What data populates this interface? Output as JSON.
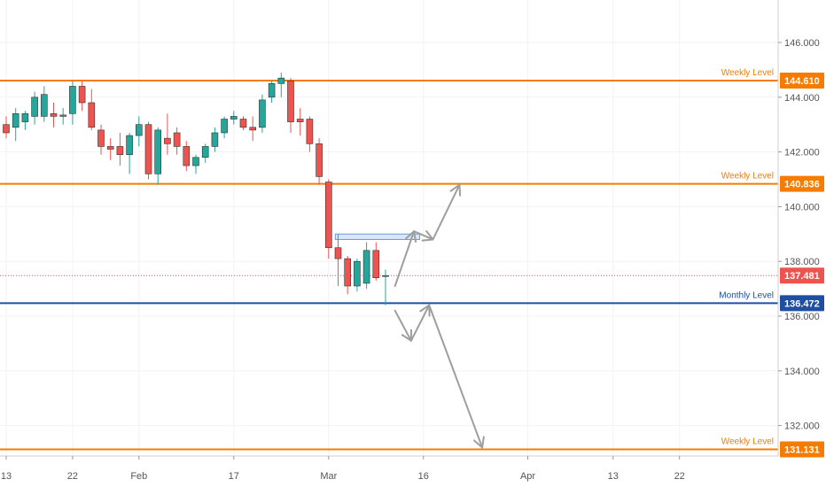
{
  "colors": {
    "up": "#26a69a",
    "down": "#ef5350",
    "weekly": "#f57c00",
    "monthly": "#1e4fa3",
    "current": "#ef5350",
    "arrow": "#9e9e9e",
    "zone_fill": "#cfe0f7",
    "zone_stroke": "#6e9bd8"
  },
  "chart_data": {
    "type": "candlestick",
    "ylim": [
      130.3,
      148.0
    ],
    "y_ticks": [
      {
        "value": 132,
        "label": "132.000"
      },
      {
        "value": 134,
        "label": "134.000"
      },
      {
        "value": 136,
        "label": "136.000"
      },
      {
        "value": 138,
        "label": "138.000"
      },
      {
        "value": 140,
        "label": "140.000"
      },
      {
        "value": 142,
        "label": "142.000"
      },
      {
        "value": 144,
        "label": "144.000"
      },
      {
        "value": 146,
        "label": "146.000"
      }
    ],
    "x_ticks": [
      {
        "index": 0,
        "label": "13"
      },
      {
        "index": 7,
        "label": "22"
      },
      {
        "index": 14,
        "label": "Feb"
      },
      {
        "index": 24,
        "label": "17"
      },
      {
        "index": 34,
        "label": "Mar"
      },
      {
        "index": 44,
        "label": "16"
      },
      {
        "index": 55,
        "label": "Apr"
      },
      {
        "index": 64,
        "label": "13"
      },
      {
        "index": 71,
        "label": "22"
      }
    ],
    "candles": [
      {
        "i": 0,
        "o": 143.0,
        "h": 143.3,
        "l": 142.5,
        "c": 142.7
      },
      {
        "i": 1,
        "o": 142.9,
        "h": 143.6,
        "l": 142.4,
        "c": 143.4
      },
      {
        "i": 2,
        "o": 143.1,
        "h": 143.5,
        "l": 142.8,
        "c": 143.4
      },
      {
        "i": 3,
        "o": 143.3,
        "h": 144.2,
        "l": 143.0,
        "c": 144.0
      },
      {
        "i": 4,
        "o": 143.3,
        "h": 144.4,
        "l": 143.1,
        "c": 144.1
      },
      {
        "i": 5,
        "o": 143.4,
        "h": 143.8,
        "l": 142.9,
        "c": 143.3
      },
      {
        "i": 6,
        "o": 143.3,
        "h": 143.6,
        "l": 143.0,
        "c": 143.35
      },
      {
        "i": 7,
        "o": 143.4,
        "h": 144.6,
        "l": 143.0,
        "c": 144.4
      },
      {
        "i": 8,
        "o": 144.4,
        "h": 144.6,
        "l": 143.5,
        "c": 143.8
      },
      {
        "i": 9,
        "o": 143.8,
        "h": 144.3,
        "l": 142.8,
        "c": 142.9
      },
      {
        "i": 10,
        "o": 142.8,
        "h": 143.0,
        "l": 141.9,
        "c": 142.2
      },
      {
        "i": 11,
        "o": 142.2,
        "h": 142.5,
        "l": 141.7,
        "c": 142.1
      },
      {
        "i": 12,
        "o": 142.2,
        "h": 142.7,
        "l": 141.5,
        "c": 141.9
      },
      {
        "i": 13,
        "o": 141.9,
        "h": 142.7,
        "l": 141.2,
        "c": 142.6
      },
      {
        "i": 14,
        "o": 142.6,
        "h": 143.3,
        "l": 142.2,
        "c": 143.0
      },
      {
        "i": 15,
        "o": 143.0,
        "h": 143.1,
        "l": 141.0,
        "c": 141.2
      },
      {
        "i": 16,
        "o": 141.2,
        "h": 142.9,
        "l": 140.8,
        "c": 142.8
      },
      {
        "i": 17,
        "o": 142.5,
        "h": 143.4,
        "l": 141.9,
        "c": 142.3
      },
      {
        "i": 18,
        "o": 142.7,
        "h": 142.9,
        "l": 141.9,
        "c": 142.2
      },
      {
        "i": 19,
        "o": 142.2,
        "h": 142.4,
        "l": 141.3,
        "c": 141.5
      },
      {
        "i": 20,
        "o": 141.5,
        "h": 141.9,
        "l": 141.2,
        "c": 141.8
      },
      {
        "i": 21,
        "o": 141.8,
        "h": 142.3,
        "l": 141.6,
        "c": 142.2
      },
      {
        "i": 22,
        "o": 142.2,
        "h": 142.9,
        "l": 142.0,
        "c": 142.7
      },
      {
        "i": 23,
        "o": 142.7,
        "h": 143.3,
        "l": 142.5,
        "c": 143.2
      },
      {
        "i": 24,
        "o": 143.2,
        "h": 143.5,
        "l": 143.0,
        "c": 143.3
      },
      {
        "i": 25,
        "o": 143.2,
        "h": 143.3,
        "l": 142.8,
        "c": 142.9
      },
      {
        "i": 26,
        "o": 142.9,
        "h": 143.3,
        "l": 142.4,
        "c": 142.8
      },
      {
        "i": 27,
        "o": 142.9,
        "h": 144.1,
        "l": 142.7,
        "c": 143.9
      },
      {
        "i": 28,
        "o": 144.0,
        "h": 144.6,
        "l": 143.8,
        "c": 144.5
      },
      {
        "i": 29,
        "o": 144.5,
        "h": 144.9,
        "l": 144.0,
        "c": 144.7
      },
      {
        "i": 30,
        "o": 144.6,
        "h": 144.7,
        "l": 142.7,
        "c": 143.1
      },
      {
        "i": 31,
        "o": 143.2,
        "h": 143.6,
        "l": 142.6,
        "c": 143.1
      },
      {
        "i": 32,
        "o": 143.2,
        "h": 143.3,
        "l": 142.0,
        "c": 142.3
      },
      {
        "i": 33,
        "o": 142.3,
        "h": 142.5,
        "l": 140.8,
        "c": 141.1
      },
      {
        "i": 34,
        "o": 140.9,
        "h": 141.0,
        "l": 138.1,
        "c": 138.5
      },
      {
        "i": 35,
        "o": 138.5,
        "h": 139.0,
        "l": 137.1,
        "c": 138.1
      },
      {
        "i": 36,
        "o": 138.1,
        "h": 138.2,
        "l": 136.8,
        "c": 137.1
      },
      {
        "i": 37,
        "o": 137.1,
        "h": 138.1,
        "l": 136.9,
        "c": 138.0
      },
      {
        "i": 38,
        "o": 137.2,
        "h": 138.7,
        "l": 137.0,
        "c": 138.4
      },
      {
        "i": 39,
        "o": 138.4,
        "h": 138.7,
        "l": 137.3,
        "c": 137.4
      },
      {
        "i": 40,
        "o": 137.481,
        "h": 137.7,
        "l": 136.4,
        "c": 137.481
      }
    ],
    "levels": [
      {
        "label": "Weekly Level",
        "value": 144.61,
        "badge": "144.610",
        "kind": "weekly"
      },
      {
        "label": "Weekly Level",
        "value": 140.836,
        "badge": "140.836",
        "kind": "weekly"
      },
      {
        "label": "Monthly Level",
        "value": 136.472,
        "badge": "136.472",
        "kind": "monthly"
      },
      {
        "label": "Weekly Level",
        "value": 131.131,
        "badge": "131.131",
        "kind": "weekly"
      }
    ],
    "current_price": {
      "value": 137.481,
      "badge": "137.481"
    },
    "zone": {
      "from_index": 34.7,
      "to_index": 43.6,
      "top": 139.0,
      "bottom": 138.8
    },
    "projections": [
      {
        "name": "bullish-path",
        "points": [
          [
            41,
            137.1
          ],
          [
            43,
            139.1
          ],
          [
            45,
            138.8
          ],
          [
            47.8,
            140.8
          ]
        ]
      },
      {
        "name": "bearish-path",
        "points": [
          [
            41,
            136.2
          ],
          [
            42.7,
            135.1
          ],
          [
            44.6,
            136.4
          ],
          [
            50.2,
            131.2
          ]
        ]
      }
    ]
  }
}
